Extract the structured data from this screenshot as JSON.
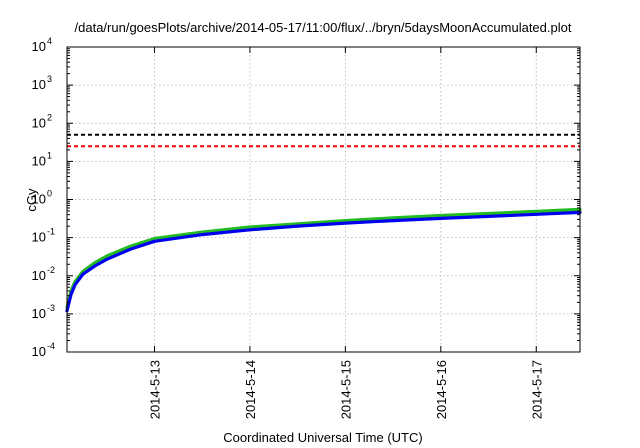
{
  "chart_data": {
    "type": "line",
    "title": "/data/run/goesPlots/archive/2014-05-17/11:00/flux/../bryn/5daysMoonAccumulated.plot",
    "xlabel": "Coordinated Universal Time (UTC)",
    "ylabel": "cGy",
    "yscale": "log",
    "ylim_exponents": [
      -4,
      4
    ],
    "y_tick_labels": [
      {
        "base": "10",
        "exp": "-4"
      },
      {
        "base": "10",
        "exp": "-3"
      },
      {
        "base": "10",
        "exp": "-2"
      },
      {
        "base": "10",
        "exp": "-1"
      },
      {
        "base": "10",
        "exp": "0"
      },
      {
        "base": "10",
        "exp": "1"
      },
      {
        "base": "10",
        "exp": "2"
      },
      {
        "base": "10",
        "exp": "3"
      },
      {
        "base": "10",
        "exp": "4"
      }
    ],
    "xlim": [
      "2014-05-12 02:00",
      "2014-05-17 11:00"
    ],
    "x_ticks": [
      "2014-05-13",
      "2014-05-14",
      "2014-05-15",
      "2014-05-16",
      "2014-05-17"
    ],
    "x_tick_labels": [
      "2014-5-13",
      "2014-5-14",
      "2014-5-15",
      "2014-5-16",
      "2014-5-17"
    ],
    "grid": true,
    "thresholds": [
      {
        "value": 50,
        "color": "#000000",
        "style": "dashed"
      },
      {
        "value": 25,
        "color": "#ff0000",
        "style": "dashed"
      }
    ],
    "series": [
      {
        "color": "#22bb22",
        "x": [
          "2014-05-12 02:00",
          "2014-05-12 03:00",
          "2014-05-12 04:00",
          "2014-05-12 06:00",
          "2014-05-12 09:00",
          "2014-05-12 12:00",
          "2014-05-12 18:00",
          "2014-05-13 00:00",
          "2014-05-13 12:00",
          "2014-05-14 00:00",
          "2014-05-14 12:00",
          "2014-05-15 00:00",
          "2014-05-15 12:00",
          "2014-05-16 00:00",
          "2014-05-16 12:00",
          "2014-05-17 00:00",
          "2014-05-17 11:00"
        ],
        "y": [
          0.0015,
          0.004,
          0.007,
          0.013,
          0.022,
          0.033,
          0.06,
          0.095,
          0.14,
          0.19,
          0.23,
          0.28,
          0.33,
          0.38,
          0.43,
          0.49,
          0.55
        ]
      },
      {
        "color": "#0000ee",
        "x": [
          "2014-05-12 02:00",
          "2014-05-12 03:00",
          "2014-05-12 04:00",
          "2014-05-12 06:00",
          "2014-05-12 09:00",
          "2014-05-12 12:00",
          "2014-05-12 18:00",
          "2014-05-13 00:00",
          "2014-05-13 12:00",
          "2014-05-14 00:00",
          "2014-05-14 12:00",
          "2014-05-15 00:00",
          "2014-05-15 12:00",
          "2014-05-16 00:00",
          "2014-05-16 12:00",
          "2014-05-17 00:00",
          "2014-05-17 11:00"
        ],
        "y": [
          0.0012,
          0.0032,
          0.0058,
          0.011,
          0.018,
          0.027,
          0.05,
          0.08,
          0.12,
          0.16,
          0.2,
          0.24,
          0.28,
          0.32,
          0.36,
          0.41,
          0.46
        ]
      }
    ]
  }
}
